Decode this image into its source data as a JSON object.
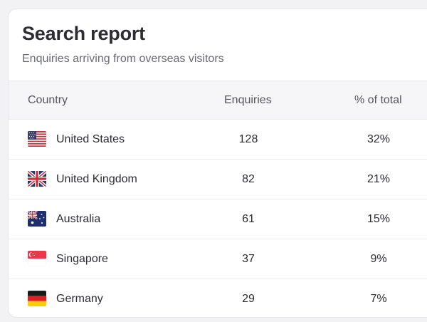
{
  "header": {
    "title": "Search report",
    "subtitle": "Enquiries arriving from overseas visitors"
  },
  "table": {
    "columns": {
      "country": "Country",
      "enquiries": "Enquiries",
      "percent": "% of total"
    },
    "rows": [
      {
        "flag_icon": "us-flag-icon",
        "country": "United States",
        "enquiries": "128",
        "percent": "32%"
      },
      {
        "flag_icon": "uk-flag-icon",
        "country": "United Kingdom",
        "enquiries": "82",
        "percent": "21%"
      },
      {
        "flag_icon": "australia-flag-icon",
        "country": "Australia",
        "enquiries": "61",
        "percent": "15%"
      },
      {
        "flag_icon": "singapore-flag-icon",
        "country": "Singapore",
        "enquiries": "37",
        "percent": "9%"
      },
      {
        "flag_icon": "germany-flag-icon",
        "country": "Germany",
        "enquiries": "29",
        "percent": "7%"
      }
    ]
  }
}
